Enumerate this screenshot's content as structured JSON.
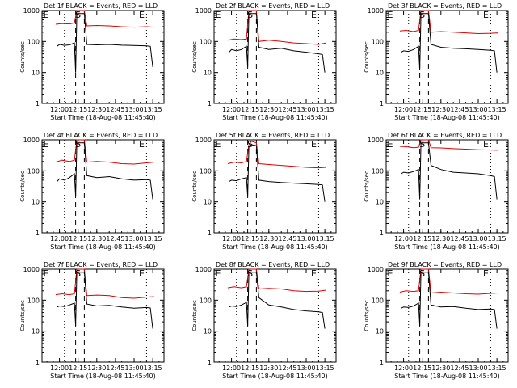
{
  "colors": {
    "events": "#000000",
    "lld": "#dd0000",
    "axes": "#000000",
    "background": "#ffffff"
  },
  "markers": {
    "start": "S",
    "end": "E",
    "edge": "E"
  },
  "chart_data": [
    {
      "type": "line",
      "title": "Det 1f BLACK = Events, RED = LLD",
      "xlabel": "Start Time (18-Aug-08 11:45:40)",
      "ylabel": "Counts/sec",
      "xlim": [
        "11:46",
        "13:24"
      ],
      "ylim": [
        1,
        1000
      ],
      "yscale": "log",
      "xticks": [
        "12:00",
        "12:15",
        "12:30",
        "12:45",
        "13:00",
        "13:15"
      ],
      "yticks": [
        "1",
        "10",
        "100",
        "1000"
      ],
      "dotted_lines": [
        "12:04",
        "13:10"
      ],
      "dashed_lines": [
        "12:13",
        "12:20"
      ],
      "series": [
        {
          "name": "LLD",
          "x": [
            "11:57",
            "12:02",
            "12:08",
            "12:12",
            "12:14",
            "12:16",
            "12:20",
            "12:22",
            "12:30",
            "12:40",
            "12:50",
            "13:00",
            "13:10",
            "13:16"
          ],
          "values": [
            360,
            380,
            370,
            400,
            1000,
            1000,
            1000,
            320,
            330,
            320,
            300,
            290,
            300,
            290
          ]
        },
        {
          "name": "Events",
          "x": [
            "11:58",
            "12:00",
            "12:04",
            "12:08",
            "12:12",
            "12:13",
            "12:14",
            "12:16",
            "12:20",
            "12:22",
            "12:30",
            "12:40",
            "12:50",
            "13:00",
            "13:10",
            "13:13",
            "13:15"
          ],
          "values": [
            70,
            80,
            75,
            78,
            90,
            10,
            800,
            800,
            800,
            80,
            78,
            80,
            76,
            74,
            72,
            70,
            15
          ]
        }
      ]
    },
    {
      "type": "line",
      "title": "Det 2f BLACK = Events, RED = LLD",
      "xlabel": "Start Time (18-Aug-08 11:45:40)",
      "ylabel": "Counts/sec",
      "xlim": [
        "11:46",
        "13:24"
      ],
      "ylim": [
        1,
        1000
      ],
      "yscale": "log",
      "xticks": [
        "12:00",
        "12:15",
        "12:30",
        "12:45",
        "13:00",
        "13:15"
      ],
      "yticks": [
        "1",
        "10",
        "100",
        "1000"
      ],
      "dotted_lines": [
        "12:04",
        "13:10"
      ],
      "dashed_lines": [
        "12:13",
        "12:20"
      ],
      "series": [
        {
          "name": "LLD",
          "x": [
            "11:57",
            "12:02",
            "12:08",
            "12:12",
            "12:14",
            "12:16",
            "12:20",
            "12:22",
            "12:30",
            "12:40",
            "12:50",
            "13:00",
            "13:10",
            "13:16"
          ],
          "values": [
            110,
            120,
            115,
            120,
            1000,
            1000,
            1000,
            100,
            110,
            100,
            90,
            85,
            80,
            90
          ]
        },
        {
          "name": "Events",
          "x": [
            "11:58",
            "12:00",
            "12:04",
            "12:08",
            "12:12",
            "12:13",
            "12:14",
            "12:16",
            "12:20",
            "12:22",
            "12:30",
            "12:40",
            "12:50",
            "13:00",
            "13:10",
            "13:13",
            "13:15"
          ],
          "values": [
            45,
            55,
            50,
            55,
            70,
            15,
            800,
            800,
            800,
            65,
            55,
            60,
            50,
            45,
            40,
            38,
            10
          ]
        }
      ]
    },
    {
      "type": "line",
      "title": "Det 3f BLACK = Events, RED = LLD",
      "xlabel": "Start Time (18-Aug-08 11:45:40)",
      "ylabel": "Counts/sec",
      "xlim": [
        "11:46",
        "13:24"
      ],
      "ylim": [
        1,
        1000
      ],
      "yscale": "log",
      "xticks": [
        "12:00",
        "12:15",
        "12:30",
        "12:45",
        "13:00",
        "13:15"
      ],
      "yticks": [
        "1",
        "10",
        "100",
        "1000"
      ],
      "dotted_lines": [
        "12:04",
        "13:10"
      ],
      "dashed_lines": [
        "12:13",
        "12:20"
      ],
      "series": [
        {
          "name": "LLD",
          "x": [
            "11:57",
            "12:02",
            "12:08",
            "12:12",
            "12:14",
            "12:16",
            "12:20",
            "12:22",
            "12:30",
            "12:40",
            "12:50",
            "13:00",
            "13:10",
            "13:16"
          ],
          "values": [
            220,
            230,
            210,
            230,
            1000,
            1000,
            1000,
            200,
            210,
            200,
            190,
            180,
            185,
            190
          ]
        },
        {
          "name": "Events",
          "x": [
            "11:58",
            "12:00",
            "12:04",
            "12:08",
            "12:12",
            "12:13",
            "12:14",
            "12:16",
            "12:20",
            "12:22",
            "12:30",
            "12:40",
            "12:50",
            "13:00",
            "13:10",
            "13:13",
            "13:15"
          ],
          "values": [
            45,
            50,
            48,
            55,
            70,
            12,
            800,
            800,
            800,
            80,
            65,
            60,
            58,
            55,
            52,
            50,
            10
          ]
        }
      ]
    },
    {
      "type": "line",
      "title": "Det 4f BLACK = Events, RED = LLD",
      "xlabel": "Start Time (18-Aug-08 11:45:40)",
      "ylabel": "Counts/sec",
      "xlim": [
        "11:46",
        "13:24"
      ],
      "ylim": [
        1,
        1000
      ],
      "yscale": "log",
      "xticks": [
        "12:00",
        "12:15",
        "12:30",
        "12:45",
        "13:00",
        "13:15"
      ],
      "yticks": [
        "1",
        "10",
        "100",
        "1000"
      ],
      "dotted_lines": [
        "12:04",
        "13:10"
      ],
      "dashed_lines": [
        "12:13",
        "12:20"
      ],
      "series": [
        {
          "name": "LLD",
          "x": [
            "11:57",
            "12:02",
            "12:08",
            "12:12",
            "12:14",
            "12:16",
            "12:20",
            "12:22",
            "12:30",
            "12:40",
            "12:50",
            "13:00",
            "13:10",
            "13:16"
          ],
          "values": [
            190,
            220,
            200,
            220,
            1000,
            1000,
            1000,
            190,
            200,
            190,
            170,
            165,
            180,
            190
          ]
        },
        {
          "name": "Events",
          "x": [
            "11:58",
            "12:00",
            "12:04",
            "12:08",
            "12:12",
            "12:13",
            "12:14",
            "12:16",
            "12:20",
            "12:22",
            "12:30",
            "12:40",
            "12:50",
            "13:00",
            "13:10",
            "13:13",
            "13:15"
          ],
          "values": [
            45,
            55,
            50,
            60,
            80,
            15,
            800,
            800,
            800,
            70,
            60,
            65,
            55,
            50,
            52,
            50,
            12
          ]
        }
      ]
    },
    {
      "type": "line",
      "title": "Det 5f BLACK = Events, RED = LLD",
      "xlabel": "Start Time (18-Aug-08 11:45:40)",
      "ylabel": "Counts/sec",
      "xlim": [
        "11:46",
        "13:24"
      ],
      "ylim": [
        1,
        1000
      ],
      "yscale": "log",
      "xticks": [
        "12:00",
        "12:15",
        "12:30",
        "12:45",
        "13:00",
        "13:15"
      ],
      "yticks": [
        "1",
        "10",
        "100",
        "1000"
      ],
      "dotted_lines": [
        "12:04",
        "13:10"
      ],
      "dashed_lines": [
        "12:13",
        "12:20"
      ],
      "series": [
        {
          "name": "LLD",
          "x": [
            "11:57",
            "12:02",
            "12:08",
            "12:12",
            "12:14",
            "12:16",
            "12:20",
            "12:22",
            "12:30",
            "12:40",
            "12:50",
            "13:00",
            "13:10",
            "13:16"
          ],
          "values": [
            170,
            190,
            180,
            200,
            700,
            900,
            800,
            170,
            160,
            150,
            140,
            130,
            125,
            130
          ]
        },
        {
          "name": "Events",
          "x": [
            "11:58",
            "12:00",
            "12:04",
            "12:08",
            "12:12",
            "12:13",
            "12:14",
            "12:16",
            "12:20",
            "12:22",
            "12:30",
            "12:40",
            "12:50",
            "13:00",
            "13:10",
            "13:13",
            "13:15"
          ],
          "values": [
            45,
            50,
            48,
            55,
            60,
            15,
            600,
            700,
            650,
            50,
            45,
            42,
            40,
            38,
            36,
            35,
            10
          ]
        }
      ]
    },
    {
      "type": "line",
      "title": "Det 6f BLACK = Events, RED = LLD",
      "xlabel": "Start Time (18-Aug-08 11:45:40)",
      "ylabel": "Counts/sec",
      "xlim": [
        "11:46",
        "13:24"
      ],
      "ylim": [
        1,
        1000
      ],
      "yscale": "log",
      "xticks": [
        "12:00",
        "12:15",
        "12:30",
        "12:45",
        "13:00",
        "13:15"
      ],
      "yticks": [
        "1",
        "10",
        "100",
        "1000"
      ],
      "dotted_lines": [
        "12:04",
        "13:10"
      ],
      "dashed_lines": [
        "12:13",
        "12:20"
      ],
      "series": [
        {
          "name": "LLD",
          "x": [
            "11:57",
            "12:02",
            "12:08",
            "12:12",
            "12:14",
            "12:16",
            "12:20",
            "12:22",
            "12:30",
            "12:40",
            "12:50",
            "13:00",
            "13:10",
            "13:16"
          ],
          "values": [
            620,
            600,
            560,
            580,
            1000,
            1000,
            1000,
            560,
            550,
            520,
            500,
            480,
            470,
            460
          ]
        },
        {
          "name": "Events",
          "x": [
            "11:58",
            "12:00",
            "12:04",
            "12:08",
            "12:12",
            "12:13",
            "12:14",
            "12:16",
            "12:20",
            "12:22",
            "12:30",
            "12:40",
            "12:50",
            "13:00",
            "13:10",
            "13:13",
            "13:15"
          ],
          "values": [
            80,
            90,
            85,
            95,
            110,
            12,
            800,
            800,
            800,
            150,
            110,
            90,
            85,
            80,
            70,
            65,
            12
          ]
        }
      ]
    },
    {
      "type": "line",
      "title": "Det 7f BLACK = Events, RED = LLD",
      "xlabel": "Start Time (18-Aug-08 11:45:40)",
      "ylabel": "Counts/sec",
      "xlim": [
        "11:46",
        "13:24"
      ],
      "ylim": [
        1,
        1000
      ],
      "yscale": "log",
      "xticks": [
        "12:00",
        "12:15",
        "12:30",
        "12:45",
        "13:00",
        "13:15"
      ],
      "yticks": [
        "1",
        "10",
        "100",
        "1000"
      ],
      "dotted_lines": [
        "12:04",
        "13:10"
      ],
      "dashed_lines": [
        "12:13",
        "12:20"
      ],
      "series": [
        {
          "name": "LLD",
          "x": [
            "11:57",
            "12:02",
            "12:08",
            "12:12",
            "12:14",
            "12:16",
            "12:20",
            "12:22",
            "12:30",
            "12:40",
            "12:50",
            "13:00",
            "13:10",
            "13:16"
          ],
          "values": [
            150,
            160,
            150,
            160,
            1000,
            1000,
            1000,
            140,
            145,
            140,
            120,
            115,
            125,
            130
          ]
        },
        {
          "name": "Events",
          "x": [
            "11:58",
            "12:00",
            "12:04",
            "12:08",
            "12:12",
            "12:13",
            "12:14",
            "12:16",
            "12:20",
            "12:22",
            "12:30",
            "12:40",
            "12:50",
            "13:00",
            "13:10",
            "13:13",
            "13:15"
          ],
          "values": [
            60,
            65,
            62,
            70,
            80,
            15,
            800,
            800,
            800,
            75,
            65,
            68,
            60,
            55,
            58,
            56,
            12
          ]
        }
      ]
    },
    {
      "type": "line",
      "title": "Det 8f BLACK = Events, RED = LLD",
      "xlabel": "Start Time (18-Aug-08 11:45:40)",
      "ylabel": "Counts/sec",
      "xlim": [
        "11:46",
        "13:24"
      ],
      "ylim": [
        1,
        1000
      ],
      "yscale": "log",
      "xticks": [
        "12:00",
        "12:15",
        "12:30",
        "12:45",
        "13:00",
        "13:15"
      ],
      "yticks": [
        "1",
        "10",
        "100",
        "1000"
      ],
      "dotted_lines": [
        "12:04",
        "13:10"
      ],
      "dashed_lines": [
        "12:13",
        "12:20"
      ],
      "series": [
        {
          "name": "LLD",
          "x": [
            "11:57",
            "12:02",
            "12:08",
            "12:12",
            "12:14",
            "12:16",
            "12:20",
            "12:22",
            "12:30",
            "12:40",
            "12:50",
            "13:00",
            "13:10",
            "13:16"
          ],
          "values": [
            250,
            270,
            250,
            270,
            1000,
            1000,
            1000,
            230,
            240,
            230,
            200,
            190,
            195,
            210
          ]
        },
        {
          "name": "Events",
          "x": [
            "11:58",
            "12:00",
            "12:04",
            "12:08",
            "12:12",
            "12:13",
            "12:14",
            "12:16",
            "12:20",
            "12:22",
            "12:30",
            "12:40",
            "12:50",
            "13:00",
            "13:10",
            "13:13",
            "13:15"
          ],
          "values": [
            60,
            65,
            62,
            70,
            85,
            15,
            800,
            800,
            800,
            120,
            70,
            60,
            50,
            45,
            42,
            40,
            12
          ]
        }
      ]
    },
    {
      "type": "line",
      "title": "Det 9f BLACK = Events, RED = LLD",
      "xlabel": "Start Time (18-Aug-08 11:45:40)",
      "ylabel": "Counts/sec",
      "xlim": [
        "11:46",
        "13:24"
      ],
      "ylim": [
        1,
        1000
      ],
      "yscale": "log",
      "xticks": [
        "12:00",
        "12:15",
        "12:30",
        "12:45",
        "13:00",
        "13:15"
      ],
      "yticks": [
        "1",
        "10",
        "100",
        "1000"
      ],
      "dotted_lines": [
        "12:04",
        "13:10"
      ],
      "dashed_lines": [
        "12:13",
        "12:20"
      ],
      "series": [
        {
          "name": "LLD",
          "x": [
            "11:57",
            "12:02",
            "12:08",
            "12:12",
            "12:14",
            "12:16",
            "12:20",
            "12:22",
            "12:30",
            "12:40",
            "12:50",
            "13:00",
            "13:10",
            "13:16"
          ],
          "values": [
            180,
            200,
            190,
            200,
            1000,
            1000,
            1000,
            170,
            180,
            170,
            160,
            155,
            165,
            170
          ]
        },
        {
          "name": "Events",
          "x": [
            "11:58",
            "12:00",
            "12:04",
            "12:08",
            "12:12",
            "12:13",
            "12:14",
            "12:16",
            "12:20",
            "12:22",
            "12:30",
            "12:40",
            "12:50",
            "13:00",
            "13:10",
            "13:13",
            "13:15"
          ],
          "values": [
            55,
            60,
            58,
            65,
            80,
            15,
            800,
            800,
            800,
            70,
            60,
            62,
            55,
            50,
            52,
            50,
            12
          ]
        }
      ]
    }
  ]
}
